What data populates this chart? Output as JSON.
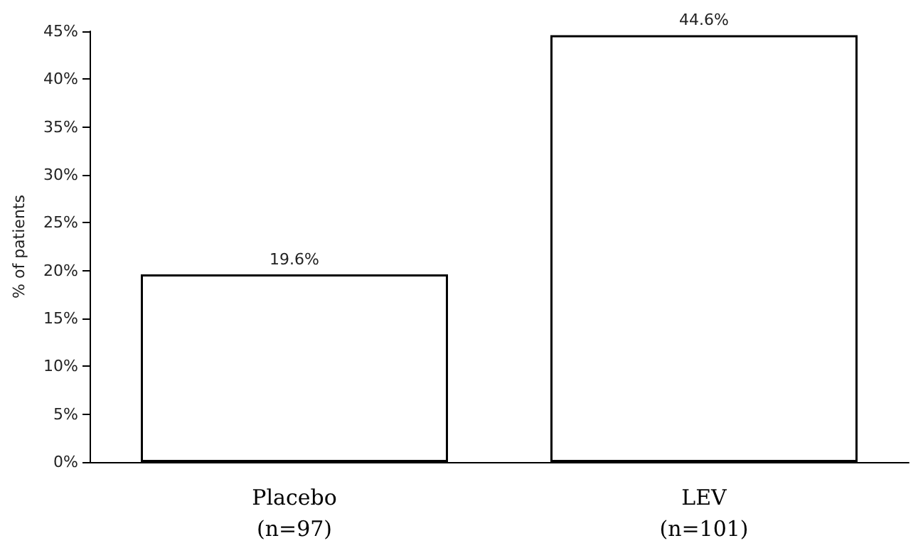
{
  "chart_data": {
    "type": "bar",
    "ylabel": "% of patients",
    "categories": [
      "Placebo\n(n=97)",
      "LEV\n(n=101)"
    ],
    "values": [
      19.6,
      44.6
    ],
    "value_labels": [
      "19.6%",
      "44.6%"
    ],
    "color": "#ffffff",
    "ylim": [
      0,
      45
    ],
    "yticks": [
      {
        "value": 0,
        "label": "0%"
      },
      {
        "value": 5,
        "label": "5%"
      },
      {
        "value": 10,
        "label": "10%"
      },
      {
        "value": 15,
        "label": "15%"
      },
      {
        "value": 20,
        "label": "20%"
      },
      {
        "value": 25,
        "label": "25%"
      },
      {
        "value": 30,
        "label": "30%"
      },
      {
        "value": 35,
        "label": "35%"
      },
      {
        "value": 40,
        "label": "40%"
      },
      {
        "value": 45,
        "label": "45%"
      }
    ],
    "grid": false
  }
}
